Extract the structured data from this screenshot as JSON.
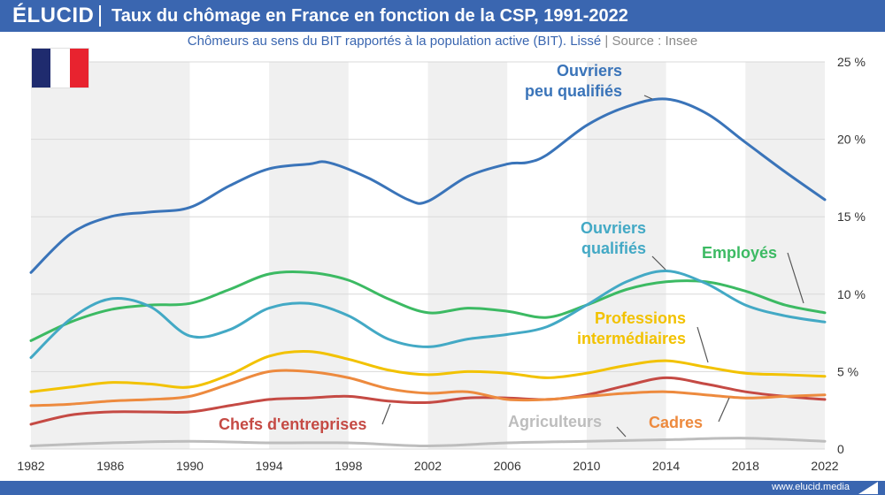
{
  "brand": "ÉLUCID",
  "title": "Taux du chômage en France en fonction de la CSP, 1991-2022",
  "subtitle": {
    "main": "Chômeurs au sens du BIT rapportés à la population active (BIT). Lissé",
    "separator": "|",
    "source": "Source : Insee"
  },
  "footer": {
    "url": "www.elucid.media"
  },
  "colors": {
    "header": "#3a66b0",
    "flag_blue": "#1f2b6e",
    "flag_white": "#ffffff",
    "flag_red": "#e8232f"
  },
  "chart_data": {
    "type": "line",
    "title": "Taux du chômage en France en fonction de la CSP, 1991-2022",
    "xlim": [
      1982,
      2022
    ],
    "ylim": [
      0,
      25
    ],
    "x_ticks": [
      "1982",
      "1986",
      "1990",
      "1994",
      "1998",
      "2002",
      "2006",
      "2010",
      "2014",
      "2018",
      "2022"
    ],
    "y_ticks": [
      "0",
      "5 %",
      "10 %",
      "15 %",
      "20 %",
      "25 %"
    ],
    "shaded_bands": [
      [
        1982,
        1990
      ],
      [
        1994,
        1998
      ],
      [
        2002,
        2006
      ],
      [
        2010,
        2014
      ],
      [
        2018,
        2022
      ]
    ],
    "grid": true,
    "series": [
      {
        "name": "Ouvriers peu qualifiés",
        "label_lines": [
          "Ouvriers",
          "peu qualifiés"
        ],
        "color": "#3a74b9",
        "x": [
          1982,
          1984,
          1986,
          1988,
          1990,
          1992,
          1994,
          1996,
          1997,
          1999,
          2001,
          2002,
          2004,
          2006,
          2007,
          2008,
          2010,
          2012,
          2014,
          2016,
          2018,
          2020,
          2022
        ],
        "values": [
          11.4,
          13.9,
          15.0,
          15.3,
          15.6,
          17.0,
          18.1,
          18.4,
          18.5,
          17.5,
          16.1,
          16.0,
          17.6,
          18.4,
          18.5,
          19.0,
          20.9,
          22.1,
          22.6,
          21.7,
          19.8,
          17.9,
          16.1
        ]
      },
      {
        "name": "Ouvriers qualifiés",
        "label_lines": [
          "Ouvriers",
          "qualifiés"
        ],
        "color": "#43a9c5",
        "x": [
          1982,
          1984,
          1986,
          1988,
          1990,
          1992,
          1994,
          1996,
          1998,
          2000,
          2002,
          2004,
          2006,
          2008,
          2010,
          2012,
          2014,
          2016,
          2018,
          2020,
          2022
        ],
        "values": [
          5.9,
          8.4,
          9.7,
          9.2,
          7.3,
          7.7,
          9.1,
          9.4,
          8.6,
          7.1,
          6.6,
          7.1,
          7.4,
          7.9,
          9.3,
          10.8,
          11.5,
          10.7,
          9.3,
          8.6,
          8.2
        ]
      },
      {
        "name": "Employés",
        "label_lines": [
          "Employés"
        ],
        "color": "#3cba63",
        "x": [
          1982,
          1984,
          1986,
          1988,
          1990,
          1992,
          1994,
          1996,
          1998,
          2000,
          2002,
          2004,
          2006,
          2008,
          2010,
          2012,
          2014,
          2016,
          2018,
          2020,
          2022
        ],
        "values": [
          7.0,
          8.2,
          9.0,
          9.3,
          9.4,
          10.3,
          11.3,
          11.4,
          10.9,
          9.7,
          8.8,
          9.1,
          8.9,
          8.5,
          9.3,
          10.3,
          10.8,
          10.8,
          10.2,
          9.3,
          8.8
        ]
      },
      {
        "name": "Professions intermédiaires",
        "label_lines": [
          "Professions",
          "intermédiaires"
        ],
        "color": "#f2c200",
        "x": [
          1982,
          1984,
          1986,
          1988,
          1990,
          1992,
          1994,
          1996,
          1998,
          2000,
          2002,
          2004,
          2006,
          2008,
          2010,
          2012,
          2014,
          2016,
          2018,
          2020,
          2022
        ],
        "values": [
          3.7,
          4.0,
          4.3,
          4.2,
          4.0,
          4.8,
          6.0,
          6.3,
          5.8,
          5.1,
          4.8,
          5.0,
          4.9,
          4.6,
          4.9,
          5.4,
          5.7,
          5.3,
          4.9,
          4.8,
          4.7
        ]
      },
      {
        "name": "Cadres",
        "label_lines": [
          "Cadres"
        ],
        "color": "#ed8a3e",
        "x": [
          1982,
          1984,
          1986,
          1988,
          1990,
          1992,
          1994,
          1996,
          1998,
          2000,
          2002,
          2004,
          2006,
          2008,
          2010,
          2012,
          2014,
          2016,
          2018,
          2020,
          2022
        ],
        "values": [
          2.8,
          2.9,
          3.1,
          3.2,
          3.4,
          4.2,
          5.0,
          5.0,
          4.6,
          3.9,
          3.6,
          3.7,
          3.2,
          3.2,
          3.4,
          3.6,
          3.7,
          3.5,
          3.3,
          3.4,
          3.5
        ]
      },
      {
        "name": "Chefs d'entreprises",
        "label_lines": [
          "Chefs d'entreprises"
        ],
        "color": "#c54a44",
        "x": [
          1982,
          1984,
          1986,
          1988,
          1990,
          1992,
          1994,
          1996,
          1998,
          2000,
          2002,
          2004,
          2006,
          2008,
          2010,
          2012,
          2014,
          2016,
          2018,
          2020,
          2022
        ],
        "values": [
          1.6,
          2.2,
          2.4,
          2.4,
          2.4,
          2.8,
          3.2,
          3.3,
          3.4,
          3.1,
          3.0,
          3.3,
          3.3,
          3.2,
          3.5,
          4.1,
          4.6,
          4.2,
          3.7,
          3.4,
          3.2
        ]
      },
      {
        "name": "Agriculteurs",
        "label_lines": [
          "Agriculteurs"
        ],
        "color": "#bdbdbd",
        "x": [
          1982,
          1986,
          1990,
          1994,
          1998,
          2002,
          2006,
          2010,
          2014,
          2018,
          2022
        ],
        "values": [
          0.2,
          0.4,
          0.5,
          0.4,
          0.4,
          0.2,
          0.4,
          0.5,
          0.6,
          0.7,
          0.5
        ]
      }
    ]
  }
}
